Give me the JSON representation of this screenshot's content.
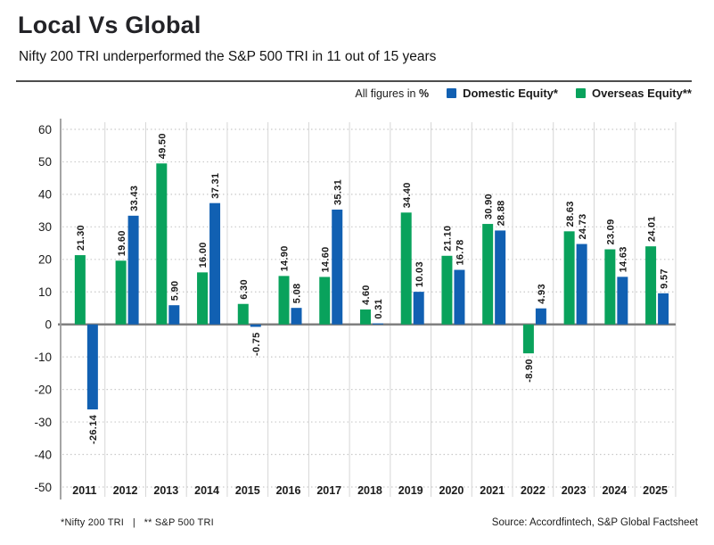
{
  "header": {
    "title": "Local Vs Global",
    "subtitle": "Nifty 200 TRI underperformed the S&P 500 TRI in 11 out of 15 years"
  },
  "legend": {
    "note": "All figures in",
    "unit": "%",
    "items": [
      {
        "label": "Domestic Equity*",
        "color": "#1160B2"
      },
      {
        "label": "Overseas Equity**",
        "color": "#09A25C"
      }
    ]
  },
  "chart_data": {
    "type": "bar",
    "title": "Local Vs Global",
    "categories": [
      "2011",
      "2012",
      "2013",
      "2014",
      "2015",
      "2016",
      "2017",
      "2018",
      "2019",
      "2020",
      "2021",
      "2022",
      "2023",
      "2024",
      "2025"
    ],
    "series": [
      {
        "name": "Overseas Equity**",
        "color": "#09A25C",
        "values": [
          21.3,
          19.6,
          49.5,
          16.0,
          6.3,
          14.9,
          14.6,
          4.6,
          34.4,
          21.1,
          30.9,
          -8.9,
          28.63,
          23.09,
          24.01
        ]
      },
      {
        "name": "Domestic Equity*",
        "color": "#1160B2",
        "values": [
          -26.14,
          33.43,
          5.9,
          37.31,
          -0.75,
          5.08,
          35.31,
          0.31,
          10.03,
          16.78,
          28.88,
          4.93,
          24.73,
          14.63,
          9.57
        ]
      }
    ],
    "xlabel": "",
    "ylabel": "",
    "ylim": [
      -50,
      60
    ],
    "ytick_step": 10,
    "grid": true,
    "legend_position": "top-right",
    "value_labels": true,
    "value_label_decimals": 2
  },
  "footer": {
    "left_note": "*Nifty 200 TRI   |   ** S&P 500 TRI",
    "source": "Source: Accordfintech, S&P Global Factsheet"
  },
  "colors": {
    "axis_line": "#9b9b9b",
    "zero_line": "#7a7a7a",
    "h_gridline": "#c9c9c9",
    "v_gridline": "#d6d6d6",
    "label_text": "#1b1b1b"
  }
}
